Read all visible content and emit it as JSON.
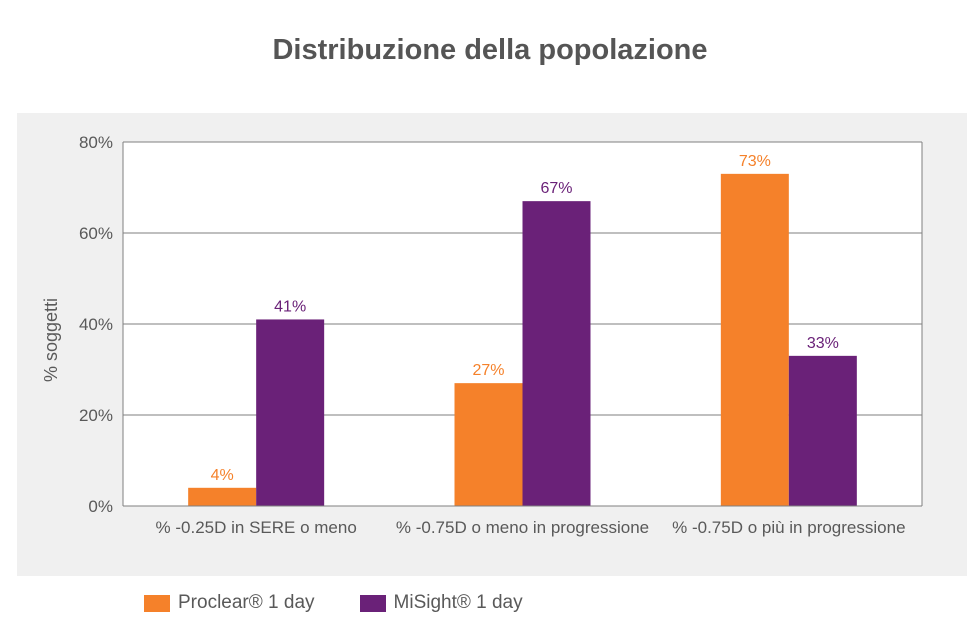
{
  "chart_data": {
    "type": "bar",
    "title": "Distribuzione della popolazione",
    "ylabel": "% soggetti",
    "xlabel": "",
    "ylim": [
      0,
      80
    ],
    "yticks": [
      0,
      20,
      40,
      60,
      80
    ],
    "ytick_labels": [
      "0%",
      "20%",
      "40%",
      "60%",
      "80%"
    ],
    "categories": [
      "% -0.25D in SERE o meno",
      "% -0.75D o meno in progressione",
      "% -0.75D o più in progressione"
    ],
    "series": [
      {
        "name": "Proclear® 1 day",
        "values": [
          4,
          27,
          73
        ],
        "labels": [
          "4%",
          "27%",
          "73%"
        ],
        "color": "#f5812a"
      },
      {
        "name": "MiSight® 1 day",
        "values": [
          41,
          67,
          33
        ],
        "labels": [
          "41%",
          "67%",
          "33%"
        ],
        "color": "#6a2178"
      }
    ],
    "grid": true,
    "legend": "bottom"
  }
}
